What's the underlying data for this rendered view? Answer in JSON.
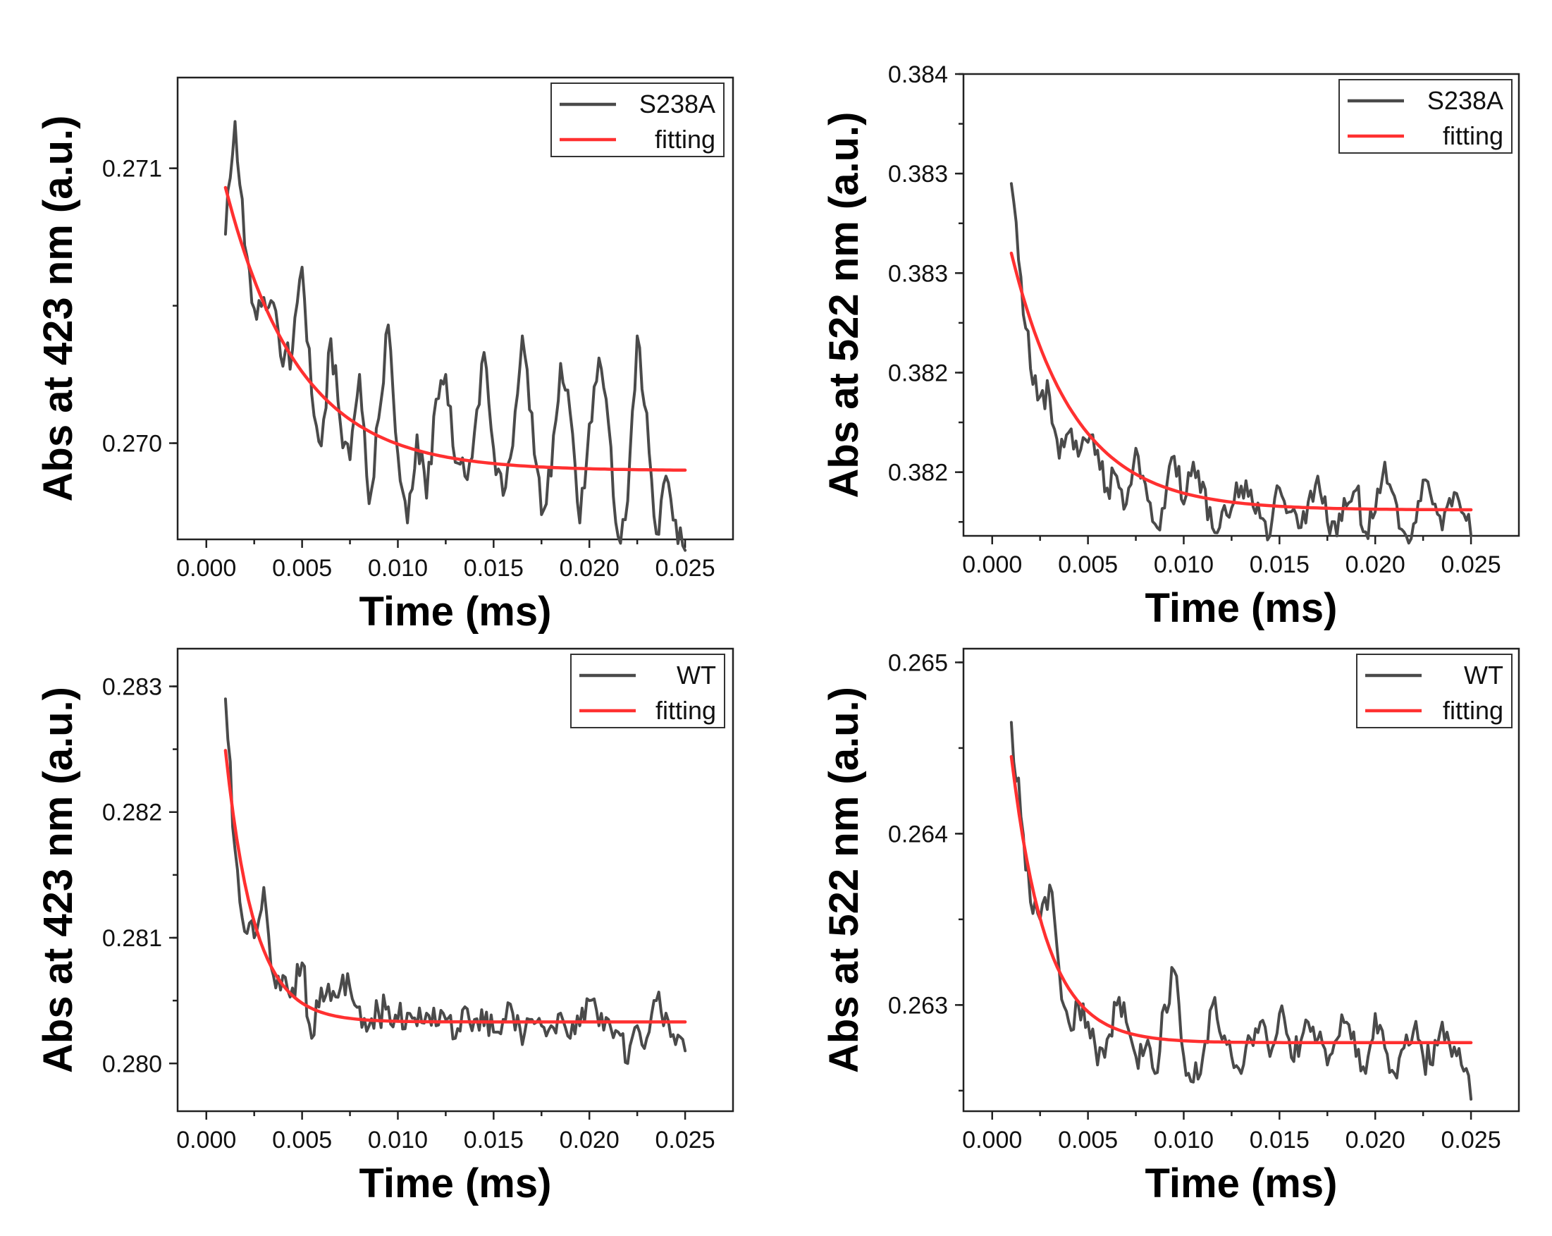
{
  "colors": {
    "data": "#4a4a4a",
    "fit": "#ff3030",
    "axis": "#222222"
  },
  "chart_data": [
    {
      "type": "line",
      "xlabel": "Time (ms)",
      "ylabel": "Abs at 423 nm (a.u.)",
      "xlim": [
        -0.0015,
        0.0275
      ],
      "ylim": [
        0.26965,
        0.27133
      ],
      "xticks": [
        0.0,
        0.005,
        0.01,
        0.015,
        0.02,
        0.025
      ],
      "xtick_labels": [
        "0.000",
        "0.005",
        "0.010",
        "0.015",
        "0.020",
        "0.025"
      ],
      "yticks": [
        0.27,
        0.271
      ],
      "ytick_labels": [
        "0.270",
        "0.271"
      ],
      "legend_position": "top-right",
      "series": [
        {
          "name": "S238A",
          "color": "#4a4a4a",
          "x": [
            0.001,
            0.0015,
            0.002,
            0.0025,
            0.003,
            0.0035,
            0.004,
            0.0045,
            0.005,
            0.0055,
            0.006,
            0.0065,
            0.007,
            0.0075,
            0.008,
            0.0085,
            0.009,
            0.0095,
            0.01,
            0.0105,
            0.011,
            0.0115,
            0.012,
            0.0125,
            0.013,
            0.0135,
            0.014,
            0.0145,
            0.015,
            0.0155,
            0.016,
            0.0165,
            0.017,
            0.0175,
            0.018,
            0.0185,
            0.019,
            0.0195,
            0.02,
            0.0205,
            0.021,
            0.0215,
            0.022,
            0.0225,
            0.023,
            0.0235,
            0.024,
            0.0245,
            0.025
          ],
          "y": [
            0.27076,
            0.27117,
            0.27072,
            0.27049,
            0.27053,
            0.27051,
            0.27028,
            0.27034,
            0.27064,
            0.27018,
            0.26999,
            0.27038,
            0.27007,
            0.26994,
            0.27025,
            0.26978,
            0.27009,
            0.27043,
            0.26996,
            0.26971,
            0.27003,
            0.2698,
            0.27016,
            0.27025,
            0.26993,
            0.26988,
            0.27004,
            0.27033,
            0.26998,
            0.26981,
            0.26999,
            0.27039,
            0.27011,
            0.26974,
            0.26988,
            0.27029,
            0.27011,
            0.26971,
            0.27007,
            0.27031,
            0.27007,
            0.26966,
            0.26979,
            0.27039,
            0.27011,
            0.26967,
            0.26988,
            0.26972,
            0.26961
          ]
        },
        {
          "name": "fitting",
          "color": "#ff3030",
          "model": {
            "kind": "exponential-decay",
            "x0": 0.001,
            "x1": 0.025,
            "y_start": 0.27093,
            "y_end": 0.2699,
            "tau": 0.0038
          }
        }
      ]
    },
    {
      "type": "line",
      "xlabel": "Time (ms)",
      "ylabel": "Abs at 522 nm (a.u.)",
      "xlim": [
        -0.0015,
        0.0275
      ],
      "ylim": [
        0.38168,
        0.384
      ],
      "xticks": [
        0.0,
        0.005,
        0.01,
        0.015,
        0.02,
        0.025
      ],
      "xtick_labels": [
        "0.000",
        "0.005",
        "0.010",
        "0.015",
        "0.020",
        "0.025"
      ],
      "yticks": [
        0.382,
        0.3825,
        0.383,
        0.3835,
        0.384
      ],
      "ytick_labels": [
        "0.382",
        "0.382",
        "0.383",
        "0.383",
        "0.384"
      ],
      "tick_label_indices": [
        0,
        2,
        4
      ],
      "legend_position": "top-right",
      "series": [
        {
          "name": "S238A",
          "color": "#4a4a4a",
          "x": [
            0.001,
            0.0015,
            0.002,
            0.0025,
            0.003,
            0.0035,
            0.004,
            0.0045,
            0.005,
            0.0055,
            0.006,
            0.0065,
            0.007,
            0.0075,
            0.008,
            0.0085,
            0.009,
            0.0095,
            0.01,
            0.0105,
            0.011,
            0.0115,
            0.012,
            0.0125,
            0.013,
            0.0135,
            0.014,
            0.0145,
            0.015,
            0.0155,
            0.016,
            0.0165,
            0.017,
            0.0175,
            0.018,
            0.0185,
            0.019,
            0.0195,
            0.02,
            0.0205,
            0.021,
            0.0215,
            0.022,
            0.0225,
            0.023,
            0.0235,
            0.024,
            0.0245,
            0.025
          ],
          "y": [
            0.38345,
            0.38298,
            0.38252,
            0.38238,
            0.38238,
            0.38207,
            0.3822,
            0.38208,
            0.38215,
            0.38211,
            0.38192,
            0.38198,
            0.38184,
            0.38212,
            0.38194,
            0.38174,
            0.38182,
            0.38208,
            0.38184,
            0.38205,
            0.38195,
            0.38172,
            0.3818,
            0.38182,
            0.38193,
            0.38191,
            0.38177,
            0.38168,
            0.38192,
            0.3818,
            0.38172,
            0.38185,
            0.38198,
            0.38175,
            0.38168,
            0.38183,
            0.38191,
            0.3817,
            0.3818,
            0.38205,
            0.38188,
            0.3817,
            0.38174,
            0.38196,
            0.38184,
            0.38171,
            0.38183,
            0.3818,
            0.38168
          ]
        },
        {
          "name": "fitting",
          "color": "#ff3030",
          "model": {
            "kind": "exponential-decay",
            "x0": 0.001,
            "x1": 0.025,
            "y_start": 0.3831,
            "y_end": 0.38181,
            "tau": 0.0033
          }
        }
      ]
    },
    {
      "type": "line",
      "xlabel": "Time (ms)",
      "ylabel": "Abs at 423 nm (a.u.)",
      "xlim": [
        -0.0015,
        0.0275
      ],
      "ylim": [
        0.27962,
        0.2833
      ],
      "xticks": [
        0.0,
        0.005,
        0.01,
        0.015,
        0.02,
        0.025
      ],
      "xtick_labels": [
        "0.000",
        "0.005",
        "0.010",
        "0.015",
        "0.020",
        "0.025"
      ],
      "yticks": [
        0.28,
        0.281,
        0.282,
        0.283
      ],
      "ytick_labels": [
        "0.280",
        "0.281",
        "0.282",
        "0.283"
      ],
      "legend_position": "top-right",
      "series": [
        {
          "name": "WT",
          "color": "#4a4a4a",
          "x": [
            0.001,
            0.0015,
            0.002,
            0.0025,
            0.003,
            0.0035,
            0.004,
            0.0045,
            0.005,
            0.0055,
            0.006,
            0.0065,
            0.007,
            0.0075,
            0.008,
            0.0085,
            0.009,
            0.0095,
            0.01,
            0.0105,
            0.011,
            0.0115,
            0.012,
            0.0125,
            0.013,
            0.0135,
            0.014,
            0.0145,
            0.015,
            0.0155,
            0.016,
            0.0165,
            0.017,
            0.0175,
            0.018,
            0.0185,
            0.019,
            0.0195,
            0.02,
            0.0205,
            0.021,
            0.0215,
            0.022,
            0.0225,
            0.023,
            0.0235,
            0.024,
            0.0245,
            0.025
          ],
          "y": [
            0.2829,
            0.2817,
            0.28105,
            0.281,
            0.2814,
            0.2807,
            0.2807,
            0.2806,
            0.2808,
            0.2802,
            0.2806,
            0.2805,
            0.2806,
            0.2806,
            0.28045,
            0.2803,
            0.2804,
            0.28045,
            0.28035,
            0.2804,
            0.2803,
            0.2804,
            0.2803,
            0.28035,
            0.2802,
            0.28045,
            0.28035,
            0.2803,
            0.28025,
            0.28035,
            0.2804,
            0.28015,
            0.28035,
            0.2803,
            0.2803,
            0.2804,
            0.2802,
            0.2803,
            0.2805,
            0.2803,
            0.28035,
            0.28025,
            0.28,
            0.2803,
            0.2802,
            0.2805,
            0.2804,
            0.28015,
            0.2801
          ]
        },
        {
          "name": "fitting",
          "color": "#ff3030",
          "model": {
            "kind": "exponential-decay",
            "x0": 0.001,
            "x1": 0.025,
            "y_start": 0.28249,
            "y_end": 0.28033,
            "tau": 0.0015
          }
        }
      ]
    },
    {
      "type": "line",
      "xlabel": "Time (ms)",
      "ylabel": "Abs at 522 nm (a.u.)",
      "xlim": [
        -0.0015,
        0.0275
      ],
      "ylim": [
        0.26238,
        0.26508
      ],
      "xticks": [
        0.0,
        0.005,
        0.01,
        0.015,
        0.02,
        0.025
      ],
      "xtick_labels": [
        "0.000",
        "0.005",
        "0.010",
        "0.015",
        "0.020",
        "0.025"
      ],
      "yticks": [
        0.263,
        0.264,
        0.265
      ],
      "ytick_labels": [
        "0.263",
        "0.264",
        "0.265"
      ],
      "legend_position": "top-right",
      "series": [
        {
          "name": "WT",
          "color": "#4a4a4a",
          "x": [
            0.001,
            0.0015,
            0.002,
            0.0025,
            0.003,
            0.0035,
            0.004,
            0.0045,
            0.005,
            0.0055,
            0.006,
            0.0065,
            0.007,
            0.0075,
            0.008,
            0.0085,
            0.009,
            0.0095,
            0.01,
            0.0105,
            0.011,
            0.0115,
            0.012,
            0.0125,
            0.013,
            0.0135,
            0.014,
            0.0145,
            0.015,
            0.0155,
            0.016,
            0.0165,
            0.017,
            0.0175,
            0.018,
            0.0185,
            0.019,
            0.0195,
            0.02,
            0.0205,
            0.021,
            0.0215,
            0.022,
            0.0225,
            0.023,
            0.0235,
            0.024,
            0.0245,
            0.025
          ],
          "y": [
            0.26465,
            0.2641,
            0.2636,
            0.2635,
            0.2637,
            0.2632,
            0.2629,
            0.263,
            0.2629,
            0.26265,
            0.2628,
            0.263,
            0.2629,
            0.2627,
            0.26275,
            0.2626,
            0.263,
            0.2632,
            0.2627,
            0.26255,
            0.2627,
            0.263,
            0.2628,
            0.2627,
            0.2626,
            0.2628,
            0.2629,
            0.2627,
            0.26295,
            0.2628,
            0.2627,
            0.2629,
            0.2628,
            0.26265,
            0.2628,
            0.2629,
            0.2627,
            0.2626,
            0.26295,
            0.26275,
            0.2626,
            0.26275,
            0.26285,
            0.2627,
            0.26265,
            0.2629,
            0.2627,
            0.26265,
            0.26245
          ]
        },
        {
          "name": "fitting",
          "color": "#ff3030",
          "model": {
            "kind": "exponential-decay",
            "x0": 0.001,
            "x1": 0.025,
            "y_start": 0.26445,
            "y_end": 0.26278,
            "tau": 0.0018
          }
        }
      ]
    }
  ]
}
